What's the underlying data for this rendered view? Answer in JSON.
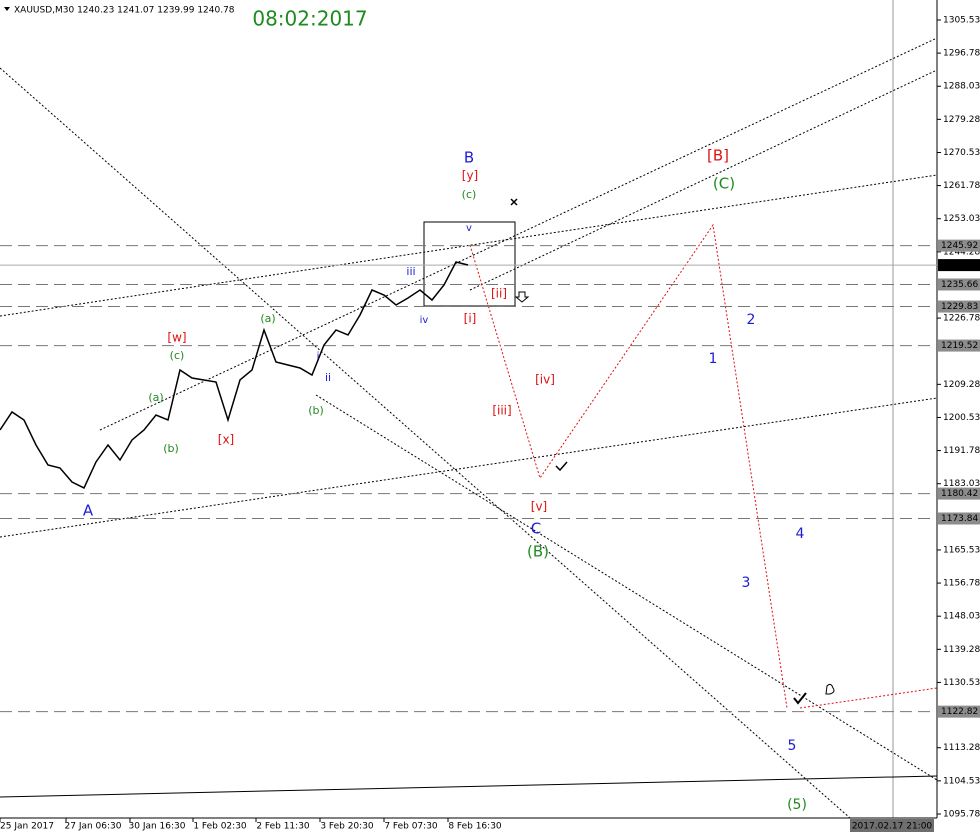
{
  "chart_data": {
    "type": "line",
    "title": "08:02:2017",
    "header": "XAUUSD,M30  1240.23 1241.07 1239.99 1240.78",
    "color": "#000000",
    "values": [
      1197.22,
      1201.98,
      1199.86,
      1193.26,
      1187.97,
      1187.18,
      1183.48,
      1181.9,
      1188.77,
      1193.26,
      1189.3,
      1194.58,
      1197.22,
      1201.18,
      1199.86,
      1213.07,
      1210.96,
      1210.43,
      1209.9,
      1199.86,
      1210.43,
      1213.07,
      1223.64,
      1215.18,
      1214.39,
      1213.6,
      1211.75,
      1219.67,
      1223.64,
      1222.32,
      1227.6,
      1234.2,
      1232.88,
      1230.24,
      1232.09,
      1234.2,
      1231.56,
      1235.53,
      1241.6,
      1240.81
    ],
    "ylim": [
      1094.72,
      1310.81
    ],
    "yticks": [
      1305.53,
      1296.78,
      1288.03,
      1279.28,
      1270.53,
      1261.78,
      1253.03,
      1244.28,
      1226.78,
      1209.28,
      1200.53,
      1191.78,
      1183.03,
      1165.53,
      1156.78,
      1148.03,
      1139.28,
      1130.53,
      1113.28,
      1104.53,
      1095.78
    ],
    "levels": [
      1245.92,
      1235.66,
      1229.83,
      1219.52,
      1180.42,
      1173.84,
      1122.82
    ],
    "last_price": 1240.78,
    "x_labels": [
      "25 Jan 2017",
      "27 Jan 06:30",
      "30 Jan 16:30",
      "1 Feb 02:30",
      "2 Feb 11:30",
      "3 Feb 20:30",
      "7 Feb 07:30",
      "8 Feb 16:30"
    ],
    "cursor_label": "2017.02.17 21:00",
    "annotations": [
      {
        "text": "B",
        "color": "#1c1cd6"
      },
      {
        "text": "[y]",
        "color": "#e01010"
      },
      {
        "text": "(c)",
        "color": "#1f8a1f"
      },
      {
        "text": "v",
        "color": "#1c1cd6"
      },
      {
        "text": "iii",
        "color": "#1c1cd6"
      },
      {
        "text": "iv",
        "color": "#1c1cd6"
      },
      {
        "text": "[ii]",
        "color": "#e01010"
      },
      {
        "text": "[i]",
        "color": "#e01010"
      },
      {
        "text": "i",
        "color": "#1c1cd6"
      },
      {
        "text": "ii",
        "color": "#1c1cd6"
      },
      {
        "text": "(a)",
        "color": "#1f8a1f"
      },
      {
        "text": "[w]",
        "color": "#e01010"
      },
      {
        "text": "(c)",
        "color": "#1f8a1f"
      },
      {
        "text": "(a)",
        "color": "#1f8a1f"
      },
      {
        "text": "(b)",
        "color": "#1f8a1f"
      },
      {
        "text": "[x]",
        "color": "#e01010"
      },
      {
        "text": "(b)",
        "color": "#1f8a1f"
      },
      {
        "text": "A",
        "color": "#1c1cd6"
      },
      {
        "text": "[iv]",
        "color": "#e01010"
      },
      {
        "text": "[iii]",
        "color": "#e01010"
      },
      {
        "text": "[v]",
        "color": "#e01010"
      },
      {
        "text": "C",
        "color": "#1c1cd6"
      },
      {
        "text": "(B)",
        "color": "#1f8a1f"
      },
      {
        "text": "[B]",
        "color": "#e01010"
      },
      {
        "text": "(C)",
        "color": "#1f8a1f"
      },
      {
        "text": "2",
        "color": "#1c1cd6"
      },
      {
        "text": "1",
        "color": "#1c1cd6"
      },
      {
        "text": "4",
        "color": "#1c1cd6"
      },
      {
        "text": "3",
        "color": "#1c1cd6"
      },
      {
        "text": "5",
        "color": "#1c1cd6"
      },
      {
        "text": "(5)",
        "color": "#1f8a1f"
      }
    ]
  }
}
